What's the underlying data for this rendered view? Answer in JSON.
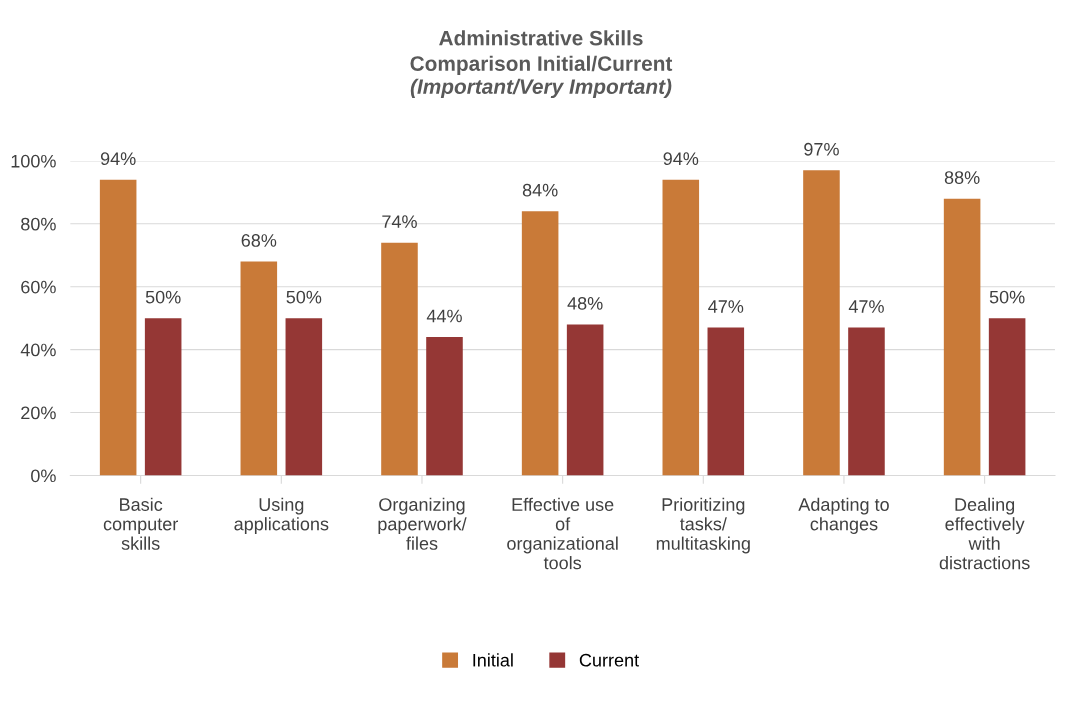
{
  "chart_data": {
    "type": "bar",
    "title": "Administrative Skills\nComparison Initial/Current",
    "subtitle": "(Important/Very Important)",
    "categories": [
      "Basic\ncomputer\nskills",
      "Using\napplications",
      "Organizing\npaperwork/\nfiles",
      "Effective use\nof\norganizational\ntools",
      "Prioritizing\ntasks/\nmultitasking",
      "Adapting to\nchanges",
      "Dealing\neffectively\nwith\ndistractions"
    ],
    "series": [
      {
        "name": "Initial",
        "color": "#c97a38",
        "values": [
          94,
          68,
          74,
          84,
          94,
          97,
          88
        ],
        "value_labels": [
          "94%",
          "68%",
          "74%",
          "84%",
          "94%",
          "97%",
          "88%"
        ]
      },
      {
        "name": "Current",
        "color": "#953735",
        "values": [
          50,
          50,
          44,
          48,
          47,
          47,
          50
        ],
        "value_labels": [
          "50%",
          "50%",
          "44%",
          "48%",
          "47%",
          "47%",
          "50%"
        ]
      }
    ],
    "ylim": [
      0,
      100
    ],
    "yticks": [
      {
        "value": 0,
        "label": "0%"
      },
      {
        "value": 20,
        "label": "20%"
      },
      {
        "value": 40,
        "label": "40%"
      },
      {
        "value": 60,
        "label": "60%"
      },
      {
        "value": 80,
        "label": "80%"
      },
      {
        "value": 100,
        "label": "100%"
      }
    ],
    "grid": "y",
    "legend": "bottom"
  }
}
